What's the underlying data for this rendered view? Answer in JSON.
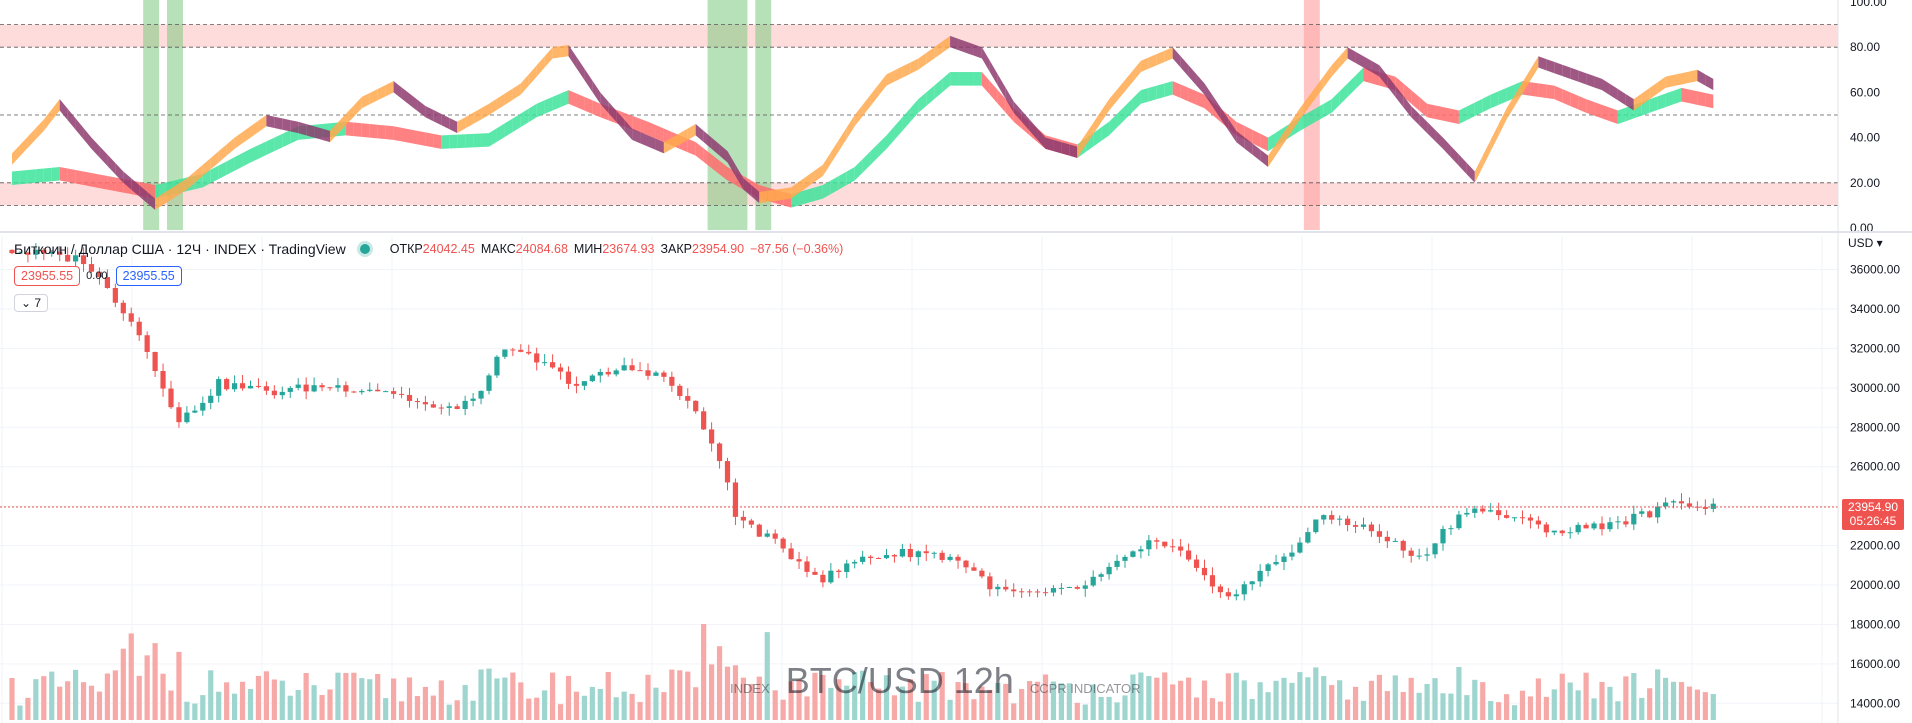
{
  "colors": {
    "up": "#26a69a",
    "down": "#ef5350",
    "up_volume": "#9ed6cf",
    "down_volume": "#f7a9a7",
    "osc_orange": "#ffa94d",
    "osc_purple": "#8e3b6e",
    "osc_green": "#3de39b",
    "osc_red": "#ff6b6b",
    "zone_fill": "#ffd6d6",
    "signal_green": "#7cc97f",
    "signal_red": "#ff9e9e"
  },
  "oscillator": {
    "axis_ticks": [
      "100.00",
      "80.00",
      "60.00",
      "40.00",
      "20.00",
      "0.00"
    ],
    "levels": [
      90,
      80,
      50,
      20,
      10
    ],
    "upper_zone": [
      80,
      90
    ],
    "lower_zone": [
      10,
      20
    ],
    "green_signal_bars": [
      [
        17,
        18
      ],
      [
        20,
        21
      ],
      [
        88,
        92
      ],
      [
        94,
        95
      ]
    ],
    "red_signal_bars": [
      [
        163,
        164
      ]
    ]
  },
  "legend": {
    "symbol": "Биткоин / Доллар США · 12Ч · INDEX · TradingView",
    "open_label": "ОТКР",
    "open_value": "24042.45",
    "high_label": "МАКС",
    "high_value": "24084.68",
    "low_label": "МИН",
    "low_value": "23674.93",
    "close_label": "ЗАКР",
    "close_value": "23954.90",
    "change": "−87.56 (−0.36%)"
  },
  "pills": {
    "sell": "23955.55",
    "spread": "0.00",
    "buy": "23955.55"
  },
  "collapse_label": "⌄ 7",
  "currency_menu": "USD ▾",
  "last_price": {
    "price": "23954.90",
    "countdown": "05:26:45"
  },
  "watermark": {
    "left": "INDEX",
    "center": "BTC/USD 12h",
    "right": "CCPR INDICATOR"
  },
  "chart_data": [
    {
      "type": "candlestick",
      "title": "BTC/USD 12h",
      "ylim": [
        13000,
        37500
      ],
      "y_ticks": [
        "36000.00",
        "34000.00",
        "32000.00",
        "30000.00",
        "28000.00",
        "26000.00",
        "24000.00",
        "22000.00",
        "20000.00",
        "18000.00",
        "16000.00",
        "14000.00"
      ],
      "key_points": [
        [
          0,
          37000
        ],
        [
          10,
          36500
        ],
        [
          16,
          33500
        ],
        [
          20,
          30200
        ],
        [
          22,
          28200
        ],
        [
          24,
          29000
        ],
        [
          27,
          30200
        ],
        [
          34,
          29800
        ],
        [
          40,
          30100
        ],
        [
          48,
          29900
        ],
        [
          55,
          28800
        ],
        [
          60,
          29600
        ],
        [
          62,
          31800
        ],
        [
          66,
          31600
        ],
        [
          72,
          30200
        ],
        [
          78,
          31000
        ],
        [
          82,
          30800
        ],
        [
          86,
          29300
        ],
        [
          90,
          26500
        ],
        [
          92,
          23500
        ],
        [
          96,
          22400
        ],
        [
          100,
          21200
        ],
        [
          103,
          20300
        ],
        [
          108,
          21400
        ],
        [
          115,
          21700
        ],
        [
          120,
          21300
        ],
        [
          125,
          19700
        ],
        [
          130,
          19500
        ],
        [
          135,
          19800
        ],
        [
          140,
          21000
        ],
        [
          144,
          22200
        ],
        [
          148,
          21600
        ],
        [
          152,
          19800
        ],
        [
          155,
          19600
        ],
        [
          158,
          20600
        ],
        [
          162,
          21800
        ],
        [
          166,
          23500
        ],
        [
          170,
          23100
        ],
        [
          174,
          22300
        ],
        [
          178,
          21300
        ],
        [
          181,
          22700
        ],
        [
          184,
          23900
        ],
        [
          188,
          23600
        ],
        [
          192,
          23100
        ],
        [
          196,
          22700
        ],
        [
          200,
          23000
        ],
        [
          204,
          23300
        ],
        [
          208,
          23800
        ],
        [
          211,
          24300
        ],
        [
          214,
          23950
        ]
      ],
      "volume_scale": [
        0,
        100
      ]
    },
    {
      "type": "area",
      "title": "CCPR INDICATOR",
      "ylim": [
        0,
        100
      ],
      "series": [
        {
          "points": [
            [
              0,
              33
            ],
            [
              4,
              48
            ],
            [
              6,
              57
            ],
            [
              10,
              40
            ],
            [
              14,
              25
            ],
            [
              18,
              13
            ],
            [
              22,
              22
            ],
            [
              28,
              40
            ],
            [
              32,
              50
            ],
            [
              36,
              47
            ],
            [
              40,
              43
            ],
            [
              44,
              58
            ],
            [
              48,
              65
            ],
            [
              52,
              54
            ],
            [
              56,
              47
            ],
            [
              60,
              55
            ],
            [
              64,
              64
            ],
            [
              68,
              80
            ],
            [
              70,
              81
            ],
            [
              74,
              60
            ],
            [
              78,
              44
            ],
            [
              82,
              38
            ],
            [
              86,
              46
            ],
            [
              90,
              34
            ],
            [
              92,
              22
            ],
            [
              94,
              16
            ],
            [
              98,
              18
            ],
            [
              102,
              28
            ],
            [
              106,
              50
            ],
            [
              110,
              68
            ],
            [
              114,
              75
            ],
            [
              118,
              85
            ],
            [
              122,
              80
            ],
            [
              126,
              56
            ],
            [
              130,
              40
            ],
            [
              134,
              36
            ],
            [
              138,
              57
            ],
            [
              142,
              74
            ],
            [
              146,
              80
            ],
            [
              150,
              64
            ],
            [
              154,
              43
            ],
            [
              158,
              32
            ],
            [
              162,
              53
            ],
            [
              166,
              72
            ],
            [
              168,
              80
            ],
            [
              172,
              72
            ],
            [
              176,
              54
            ],
            [
              180,
              40
            ],
            [
              184,
              25
            ],
            [
              188,
              53
            ],
            [
              192,
              76
            ],
            [
              196,
              71
            ],
            [
              200,
              66
            ],
            [
              204,
              57
            ],
            [
              208,
              67
            ],
            [
              212,
              70
            ],
            [
              216,
              62
            ]
          ]
        },
        {
          "points": [
            [
              0,
              28
            ],
            [
              6,
              30
            ],
            [
              12,
              26
            ],
            [
              18,
              22
            ],
            [
              24,
              27
            ],
            [
              30,
              38
            ],
            [
              36,
              48
            ],
            [
              42,
              50
            ],
            [
              48,
              48
            ],
            [
              54,
              44
            ],
            [
              60,
              45
            ],
            [
              66,
              58
            ],
            [
              70,
              64
            ],
            [
              74,
              58
            ],
            [
              80,
              50
            ],
            [
              86,
              41
            ],
            [
              90,
              30
            ],
            [
              94,
              22
            ],
            [
              98,
              18
            ],
            [
              102,
              22
            ],
            [
              106,
              30
            ],
            [
              110,
              44
            ],
            [
              114,
              60
            ],
            [
              118,
              72
            ],
            [
              122,
              72
            ],
            [
              126,
              56
            ],
            [
              130,
              44
            ],
            [
              134,
              40
            ],
            [
              138,
              50
            ],
            [
              142,
              64
            ],
            [
              146,
              68
            ],
            [
              150,
              62
            ],
            [
              154,
              50
            ],
            [
              158,
              43
            ],
            [
              162,
              52
            ],
            [
              166,
              60
            ],
            [
              170,
              74
            ],
            [
              174,
              70
            ],
            [
              178,
              58
            ],
            [
              182,
              55
            ],
            [
              186,
              62
            ],
            [
              190,
              68
            ],
            [
              194,
              66
            ],
            [
              198,
              60
            ],
            [
              202,
              55
            ],
            [
              206,
              60
            ],
            [
              210,
              65
            ],
            [
              214,
              62
            ]
          ]
        }
      ]
    }
  ]
}
